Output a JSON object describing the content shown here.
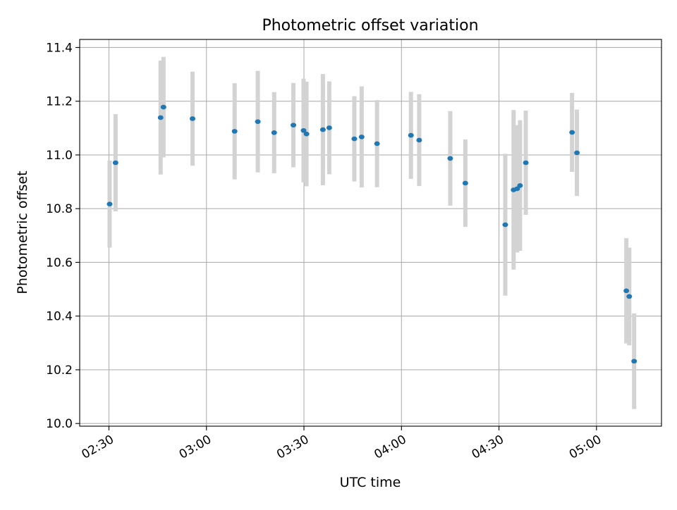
{
  "chart_data": {
    "type": "scatter",
    "title": "Photometric offset variation",
    "xlabel": "UTC time",
    "ylabel": "Photometric offset",
    "x_ticks": [
      "02:30",
      "03:00",
      "03:30",
      "04:00",
      "04:30",
      "05:00"
    ],
    "y_ticks": [
      "10.0",
      "10.2",
      "10.4",
      "10.6",
      "10.8",
      "11.0",
      "11.2",
      "11.4"
    ],
    "xlim": [
      "02:21",
      "05:20"
    ],
    "ylim": [
      9.99,
      11.43
    ],
    "grid": true,
    "legend": "none",
    "colors": {
      "points": "#1f77b4",
      "errorbars": "#d3d3d3",
      "grid": "#b0b0b0"
    },
    "points": [
      {
        "t": "02:30:13",
        "y": 10.817,
        "err": 0.162
      },
      {
        "t": "02:32:02",
        "y": 10.971,
        "err": 0.181
      },
      {
        "t": "02:45:54",
        "y": 11.139,
        "err": 0.212
      },
      {
        "t": "02:46:47",
        "y": 11.178,
        "err": 0.187
      },
      {
        "t": "02:55:43",
        "y": 11.135,
        "err": 0.175
      },
      {
        "t": "03:08:40",
        "y": 11.088,
        "err": 0.179
      },
      {
        "t": "03:15:48",
        "y": 11.124,
        "err": 0.189
      },
      {
        "t": "03:20:50",
        "y": 11.083,
        "err": 0.151
      },
      {
        "t": "03:26:45",
        "y": 11.111,
        "err": 0.157
      },
      {
        "t": "03:29:53",
        "y": 11.091,
        "err": 0.193
      },
      {
        "t": "03:30:47",
        "y": 11.078,
        "err": 0.195
      },
      {
        "t": "03:35:50",
        "y": 11.094,
        "err": 0.207
      },
      {
        "t": "03:37:47",
        "y": 11.101,
        "err": 0.173
      },
      {
        "t": "03:45:30",
        "y": 11.06,
        "err": 0.159
      },
      {
        "t": "03:47:45",
        "y": 11.067,
        "err": 0.188
      },
      {
        "t": "03:52:29",
        "y": 11.042,
        "err": 0.162
      },
      {
        "t": "04:02:55",
        "y": 11.073,
        "err": 0.162
      },
      {
        "t": "04:05:27",
        "y": 11.055,
        "err": 0.171
      },
      {
        "t": "04:15:00",
        "y": 10.987,
        "err": 0.176
      },
      {
        "t": "04:19:39",
        "y": 10.895,
        "err": 0.163
      },
      {
        "t": "04:31:56",
        "y": 10.74,
        "err": 0.264
      },
      {
        "t": "04:34:30",
        "y": 10.87,
        "err": 0.297
      },
      {
        "t": "04:35:36",
        "y": 10.874,
        "err": 0.237
      },
      {
        "t": "04:36:29",
        "y": 10.886,
        "err": 0.243
      },
      {
        "t": "04:38:15",
        "y": 10.971,
        "err": 0.194
      },
      {
        "t": "04:52:29",
        "y": 11.084,
        "err": 0.147
      },
      {
        "t": "04:53:59",
        "y": 11.008,
        "err": 0.161
      },
      {
        "t": "05:09:11",
        "y": 10.494,
        "err": 0.196
      },
      {
        "t": "05:10:05",
        "y": 10.473,
        "err": 0.182
      },
      {
        "t": "05:11:35",
        "y": 10.232,
        "err": 0.178
      }
    ]
  }
}
